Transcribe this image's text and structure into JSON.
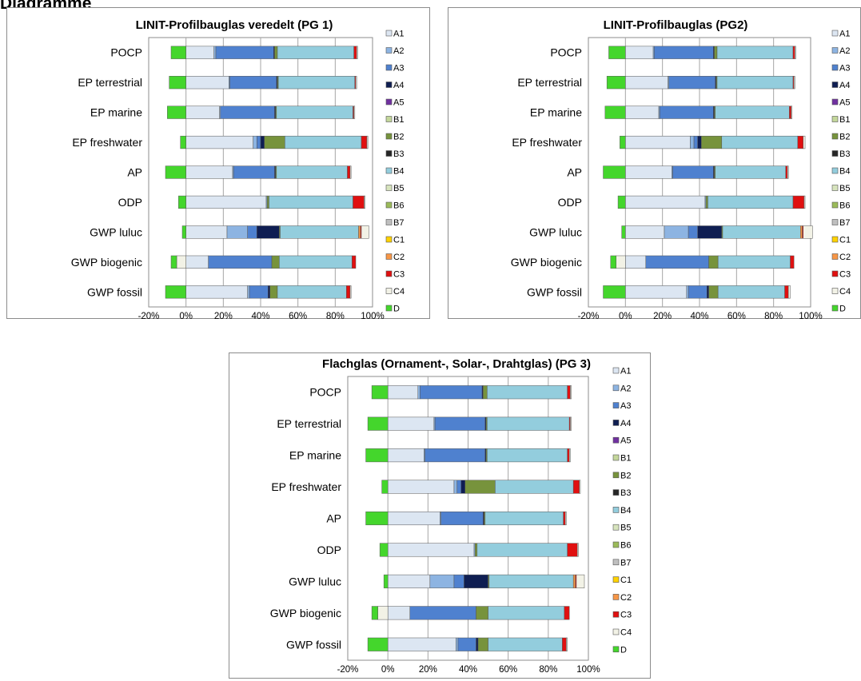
{
  "page": {
    "title": "Diagramme"
  },
  "legend_names": [
    "A1",
    "A2",
    "A3",
    "A4",
    "A5",
    "B1",
    "B2",
    "B3",
    "B4",
    "B5",
    "B6",
    "B7",
    "C1",
    "C2",
    "C3",
    "C4",
    "D"
  ],
  "colors": {
    "A1": "#dce6f2",
    "A2": "#8db4e2",
    "A3": "#4f81cf",
    "A4": "#0f1e52",
    "A5": "#7030a0",
    "B1": "#c4d79b",
    "B2": "#77933c",
    "B3": "#262626",
    "B4": "#93cddd",
    "B5": "#d7e4bd",
    "B6": "#9bbb59",
    "B7": "#bfbfbf",
    "C1": "#ffd200",
    "C2": "#f79646",
    "C3": "#e01010",
    "C4": "#f2f2e6",
    "D": "#44d62c"
  },
  "chart_data": [
    {
      "type": "bar",
      "stacked": true,
      "orientation": "horizontal",
      "title": "LINIT-Profilbauglas veredelt (PG 1)",
      "categories": [
        "POCP",
        "EP terrestrial",
        "EP marine",
        "EP freshwater",
        "AP",
        "ODP",
        "GWP luluc",
        "GWP biogenic",
        "GWP fossil"
      ],
      "xlim": [
        -20,
        100
      ],
      "x_ticks": [
        "-20%",
        "0%",
        "20%",
        "40%",
        "60%",
        "80%",
        "100%"
      ],
      "grid": true,
      "legend": "right",
      "series": [
        {
          "name": "A1",
          "values": [
            15,
            23,
            18,
            36,
            25,
            43,
            22,
            12,
            33
          ]
        },
        {
          "name": "A2",
          "values": [
            1,
            0.5,
            0.5,
            2,
            0.5,
            0.5,
            11,
            0,
            1
          ]
        },
        {
          "name": "A3",
          "values": [
            31,
            25,
            29,
            2,
            22,
            0,
            5,
            34,
            10
          ]
        },
        {
          "name": "A4",
          "values": [
            0.5,
            0.5,
            0.5,
            2,
            0.5,
            0,
            12,
            0,
            1
          ]
        },
        {
          "name": "A5",
          "values": [
            0,
            0,
            0,
            0,
            0,
            0,
            0,
            0,
            0
          ]
        },
        {
          "name": "B1",
          "values": [
            0,
            0,
            0,
            0,
            0,
            0,
            0,
            0,
            0
          ]
        },
        {
          "name": "B2",
          "values": [
            1.5,
            0.5,
            0.5,
            11,
            0.5,
            1,
            0.5,
            4,
            4
          ]
        },
        {
          "name": "B3",
          "values": [
            0,
            0,
            0,
            0,
            0,
            0,
            0,
            0,
            0
          ]
        },
        {
          "name": "B4",
          "values": [
            41,
            41,
            41,
            41,
            38,
            45,
            42,
            39,
            37
          ]
        },
        {
          "name": "B5",
          "values": [
            0,
            0,
            0,
            0,
            0,
            0,
            0,
            0,
            0
          ]
        },
        {
          "name": "B6",
          "values": [
            0,
            0,
            0,
            0,
            0,
            0,
            0,
            0,
            0
          ]
        },
        {
          "name": "B7",
          "values": [
            0,
            0,
            0,
            0,
            0,
            0,
            0,
            0,
            0
          ]
        },
        {
          "name": "C1",
          "values": [
            0,
            0,
            0,
            0,
            0,
            0,
            0,
            0,
            0
          ]
        },
        {
          "name": "C2",
          "values": [
            0,
            0,
            0,
            0,
            0,
            0,
            1,
            0,
            0
          ]
        },
        {
          "name": "C3",
          "values": [
            1.5,
            0.5,
            0.5,
            3,
            1.5,
            6,
            0.5,
            2,
            2
          ]
        },
        {
          "name": "C4",
          "values": [
            0.5,
            0.5,
            0.5,
            0.5,
            0.5,
            0.5,
            4,
            -5,
            0.5
          ]
        },
        {
          "name": "D",
          "values": [
            -8,
            -9,
            -10,
            -3,
            -11,
            -4,
            -2,
            -3,
            -11
          ]
        }
      ]
    },
    {
      "type": "bar",
      "stacked": true,
      "orientation": "horizontal",
      "title": "LINIT-Profilbauglas (PG2)",
      "categories": [
        "POCP",
        "EP terrestrial",
        "EP marine",
        "EP freshwater",
        "AP",
        "ODP",
        "GWP luluc",
        "GWP biogenic",
        "GWP fossil"
      ],
      "xlim": [
        -20,
        100
      ],
      "x_ticks": [
        "-20%",
        "0%",
        "20%",
        "40%",
        "60%",
        "80%",
        "100%"
      ],
      "grid": true,
      "legend": "right",
      "series": [
        {
          "name": "A1",
          "values": [
            15,
            23,
            18,
            35,
            25,
            43,
            21,
            11,
            33
          ]
        },
        {
          "name": "A2",
          "values": [
            0.5,
            0.5,
            0.5,
            2,
            0.5,
            0.5,
            13,
            0,
            1
          ]
        },
        {
          "name": "A3",
          "values": [
            32,
            25,
            29,
            2,
            22,
            0,
            5,
            34,
            10
          ]
        },
        {
          "name": "A4",
          "values": [
            0.5,
            0.5,
            0.5,
            2,
            0.5,
            0,
            13,
            0,
            1
          ]
        },
        {
          "name": "A5",
          "values": [
            0,
            0,
            0,
            0,
            0,
            0,
            0,
            0,
            0
          ]
        },
        {
          "name": "B1",
          "values": [
            0,
            0,
            0,
            0,
            0,
            0,
            0,
            0,
            0
          ]
        },
        {
          "name": "B2",
          "values": [
            1.5,
            0.5,
            0.5,
            11,
            0.5,
            1,
            0.5,
            5,
            5
          ]
        },
        {
          "name": "B3",
          "values": [
            0,
            0,
            0,
            0,
            0,
            0,
            0,
            0,
            0
          ]
        },
        {
          "name": "B4",
          "values": [
            41,
            41,
            40,
            41,
            38,
            46,
            42,
            39,
            36
          ]
        },
        {
          "name": "B5",
          "values": [
            0,
            0,
            0,
            0,
            0,
            0,
            0,
            0,
            0
          ]
        },
        {
          "name": "B6",
          "values": [
            0,
            0,
            0,
            0,
            0,
            0,
            0,
            0,
            0
          ]
        },
        {
          "name": "B7",
          "values": [
            0,
            0,
            0,
            0,
            0,
            0,
            0,
            0,
            0
          ]
        },
        {
          "name": "C1",
          "values": [
            0,
            0,
            0,
            0,
            0,
            0,
            0,
            0,
            0
          ]
        },
        {
          "name": "C2",
          "values": [
            0,
            0,
            0,
            0,
            0,
            0,
            1,
            0,
            0
          ]
        },
        {
          "name": "C3",
          "values": [
            1,
            0.5,
            1,
            3,
            1,
            6,
            0.5,
            2,
            2
          ]
        },
        {
          "name": "C4",
          "values": [
            0.5,
            0.5,
            0.5,
            1,
            0.5,
            0.5,
            5,
            -5,
            1
          ]
        },
        {
          "name": "D",
          "values": [
            -9,
            -10,
            -11,
            -3,
            -12,
            -4,
            -2,
            -3,
            -12
          ]
        }
      ]
    },
    {
      "type": "bar",
      "stacked": true,
      "orientation": "horizontal",
      "title": "Flachglas (Ornament-, Solar-, Drahtglas) (PG 3)",
      "categories": [
        "POCP",
        "EP terrestrial",
        "EP marine",
        "EP freshwater",
        "AP",
        "ODP",
        "GWP luluc",
        "GWP biogenic",
        "GWP fossil"
      ],
      "xlim": [
        -20,
        100
      ],
      "x_ticks": [
        "-20%",
        "0%",
        "20%",
        "40%",
        "60%",
        "80%",
        "100%"
      ],
      "grid": true,
      "legend": "right",
      "series": [
        {
          "name": "A1",
          "values": [
            15,
            23,
            18,
            33,
            26,
            43,
            21,
            11,
            34
          ]
        },
        {
          "name": "A2",
          "values": [
            1,
            0.5,
            0.5,
            1.5,
            0.5,
            0.5,
            12,
            0,
            1
          ]
        },
        {
          "name": "A3",
          "values": [
            31,
            25,
            30,
            2,
            21,
            0,
            5,
            33,
            9
          ]
        },
        {
          "name": "A4",
          "values": [
            0.5,
            0.5,
            0.5,
            2,
            0.5,
            0,
            12,
            0,
            1
          ]
        },
        {
          "name": "A5",
          "values": [
            0,
            0,
            0,
            0,
            0,
            0,
            0,
            0,
            0
          ]
        },
        {
          "name": "B1",
          "values": [
            0,
            0,
            0,
            0,
            0,
            0,
            0,
            0,
            0
          ]
        },
        {
          "name": "B2",
          "values": [
            2,
            0.5,
            0.5,
            15,
            0.5,
            1,
            0.5,
            6,
            5
          ]
        },
        {
          "name": "B3",
          "values": [
            0,
            0,
            0,
            0,
            0,
            0,
            0,
            0,
            0
          ]
        },
        {
          "name": "B4",
          "values": [
            40,
            41,
            40,
            39,
            39,
            45,
            42,
            38,
            37
          ]
        },
        {
          "name": "B5",
          "values": [
            0,
            0,
            0,
            0,
            0,
            0,
            0,
            0,
            0
          ]
        },
        {
          "name": "B6",
          "values": [
            0,
            0,
            0,
            0,
            0,
            0,
            0,
            0,
            0
          ]
        },
        {
          "name": "B7",
          "values": [
            0,
            0,
            0,
            0,
            0,
            0,
            0,
            0,
            0
          ]
        },
        {
          "name": "C1",
          "values": [
            0,
            0,
            0,
            0,
            0,
            0,
            0,
            0,
            0
          ]
        },
        {
          "name": "C2",
          "values": [
            0,
            0,
            0,
            0,
            0,
            0,
            1,
            0,
            0
          ]
        },
        {
          "name": "C3",
          "values": [
            1.5,
            0.5,
            1,
            3,
            1,
            5,
            0.5,
            2.5,
            2
          ]
        },
        {
          "name": "C4",
          "values": [
            0.5,
            0.5,
            0.5,
            0.5,
            0.5,
            0.5,
            4,
            -5,
            0.5
          ]
        },
        {
          "name": "D",
          "values": [
            -8,
            -10,
            -11,
            -3,
            -11,
            -4,
            -2,
            -3,
            -10
          ]
        }
      ]
    }
  ]
}
